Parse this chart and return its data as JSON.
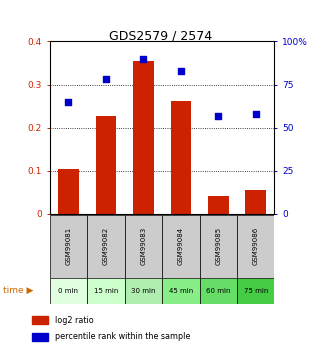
{
  "title": "GDS2579 / 2574",
  "categories": [
    "GSM99081",
    "GSM99082",
    "GSM99083",
    "GSM99084",
    "GSM99085",
    "GSM99086"
  ],
  "time_labels": [
    "0 min",
    "15 min",
    "30 min",
    "45 min",
    "60 min",
    "75 min"
  ],
  "log2_values": [
    0.103,
    0.228,
    0.355,
    0.262,
    0.042,
    0.055
  ],
  "percentile_values": [
    65,
    78,
    90,
    83,
    57,
    58
  ],
  "bar_color": "#cc2200",
  "dot_color": "#0000cc",
  "left_ylim": [
    0,
    0.4
  ],
  "right_ylim": [
    0,
    100
  ],
  "left_yticks": [
    0,
    0.1,
    0.2,
    0.3,
    0.4
  ],
  "right_yticks": [
    0,
    25,
    50,
    75,
    100
  ],
  "left_yticklabels": [
    "0",
    "0.1",
    "0.2",
    "0.3",
    "0.4"
  ],
  "right_yticklabels": [
    "0",
    "25",
    "50",
    "75",
    "100%"
  ],
  "left_tick_color": "#cc2200",
  "right_tick_color": "#0000cc",
  "title_fontsize": 9,
  "time_bg_colors": [
    "#e0ffe0",
    "#ccffcc",
    "#b0eeb0",
    "#88ee88",
    "#66dd66",
    "#44cc44"
  ],
  "sample_bg_color": "#cccccc",
  "legend_items": [
    {
      "label": "log2 ratio",
      "color": "#cc2200"
    },
    {
      "label": "percentile rank within the sample",
      "color": "#0000cc"
    }
  ]
}
